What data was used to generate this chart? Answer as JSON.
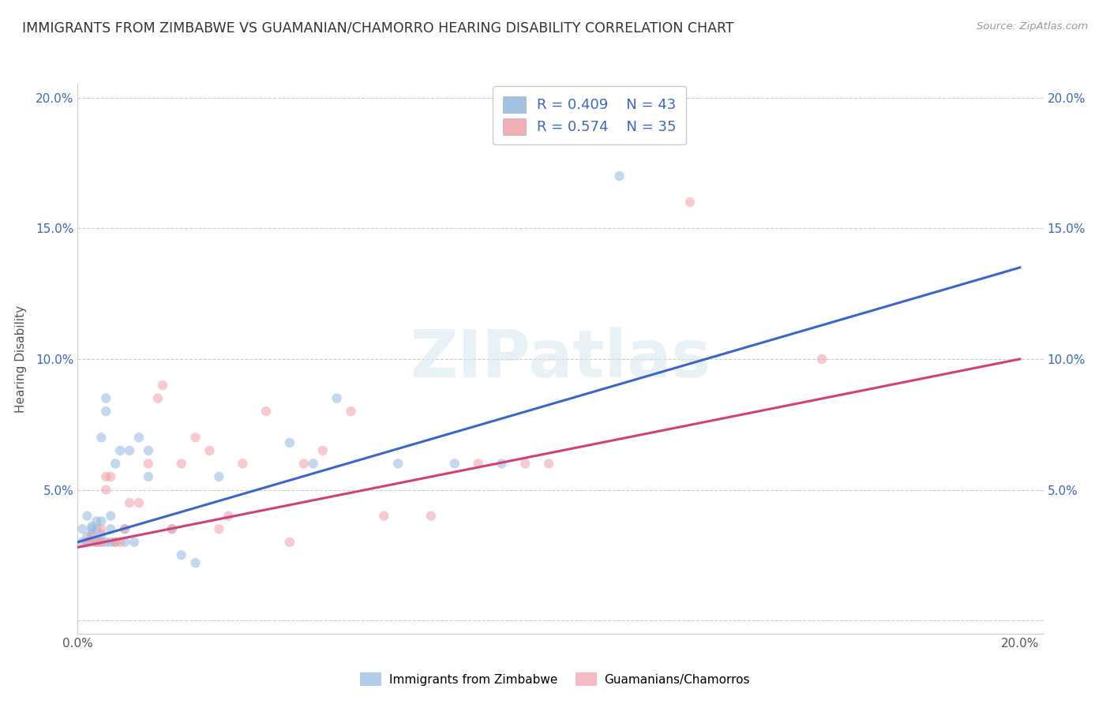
{
  "title": "IMMIGRANTS FROM ZIMBABWE VS GUAMANIAN/CHAMORRO HEARING DISABILITY CORRELATION CHART",
  "source": "Source: ZipAtlas.com",
  "ylabel": "Hearing Disability",
  "xlim": [
    0.0,
    0.205
  ],
  "ylim": [
    -0.005,
    0.205
  ],
  "xtick_positions": [
    0.0,
    0.05,
    0.1,
    0.15,
    0.2
  ],
  "ytick_positions": [
    0.0,
    0.05,
    0.1,
    0.15,
    0.2
  ],
  "legend_r1": "R = 0.409",
  "legend_n1": "N = 43",
  "legend_r2": "R = 0.574",
  "legend_n2": "N = 35",
  "blue_color": "#92b8e0",
  "pink_color": "#f0a0a8",
  "blue_line_color": "#3a66cc",
  "pink_line_color": "#d44070",
  "background_color": "#ffffff",
  "grid_color": "#cccccc",
  "title_fontsize": 12.5,
  "axis_label_fontsize": 11,
  "tick_fontsize": 11,
  "scatter_size": 80,
  "scatter_alpha": 0.55,
  "blue_scatter_x": [
    0.001,
    0.001,
    0.002,
    0.002,
    0.002,
    0.003,
    0.003,
    0.003,
    0.003,
    0.004,
    0.004,
    0.004,
    0.005,
    0.005,
    0.005,
    0.005,
    0.006,
    0.006,
    0.006,
    0.007,
    0.007,
    0.007,
    0.008,
    0.008,
    0.009,
    0.01,
    0.01,
    0.011,
    0.012,
    0.013,
    0.015,
    0.015,
    0.02,
    0.022,
    0.025,
    0.03,
    0.045,
    0.05,
    0.055,
    0.068,
    0.08,
    0.09,
    0.115
  ],
  "blue_scatter_y": [
    0.03,
    0.035,
    0.03,
    0.032,
    0.04,
    0.03,
    0.033,
    0.035,
    0.036,
    0.03,
    0.035,
    0.038,
    0.03,
    0.033,
    0.038,
    0.07,
    0.03,
    0.08,
    0.085,
    0.03,
    0.035,
    0.04,
    0.03,
    0.06,
    0.065,
    0.03,
    0.035,
    0.065,
    0.03,
    0.07,
    0.055,
    0.065,
    0.035,
    0.025,
    0.022,
    0.055,
    0.068,
    0.06,
    0.085,
    0.06,
    0.06,
    0.06,
    0.17
  ],
  "pink_scatter_x": [
    0.002,
    0.003,
    0.004,
    0.005,
    0.005,
    0.006,
    0.006,
    0.007,
    0.008,
    0.009,
    0.01,
    0.011,
    0.013,
    0.015,
    0.017,
    0.018,
    0.02,
    0.022,
    0.025,
    0.028,
    0.03,
    0.032,
    0.035,
    0.04,
    0.045,
    0.048,
    0.052,
    0.058,
    0.065,
    0.075,
    0.085,
    0.095,
    0.1,
    0.13,
    0.158
  ],
  "pink_scatter_y": [
    0.03,
    0.032,
    0.03,
    0.03,
    0.035,
    0.05,
    0.055,
    0.055,
    0.03,
    0.03,
    0.035,
    0.045,
    0.045,
    0.06,
    0.085,
    0.09,
    0.035,
    0.06,
    0.07,
    0.065,
    0.035,
    0.04,
    0.06,
    0.08,
    0.03,
    0.06,
    0.065,
    0.08,
    0.04,
    0.04,
    0.06,
    0.06,
    0.06,
    0.16,
    0.1
  ],
  "blue_line_x": [
    0.0,
    0.2
  ],
  "blue_line_y": [
    0.03,
    0.135
  ],
  "pink_line_x": [
    0.0,
    0.2
  ],
  "pink_line_y": [
    0.028,
    0.1
  ],
  "legend_label1": "Immigrants from Zimbabwe",
  "legend_label2": "Guamanians/Chamorros",
  "watermark": "ZIPatlas"
}
